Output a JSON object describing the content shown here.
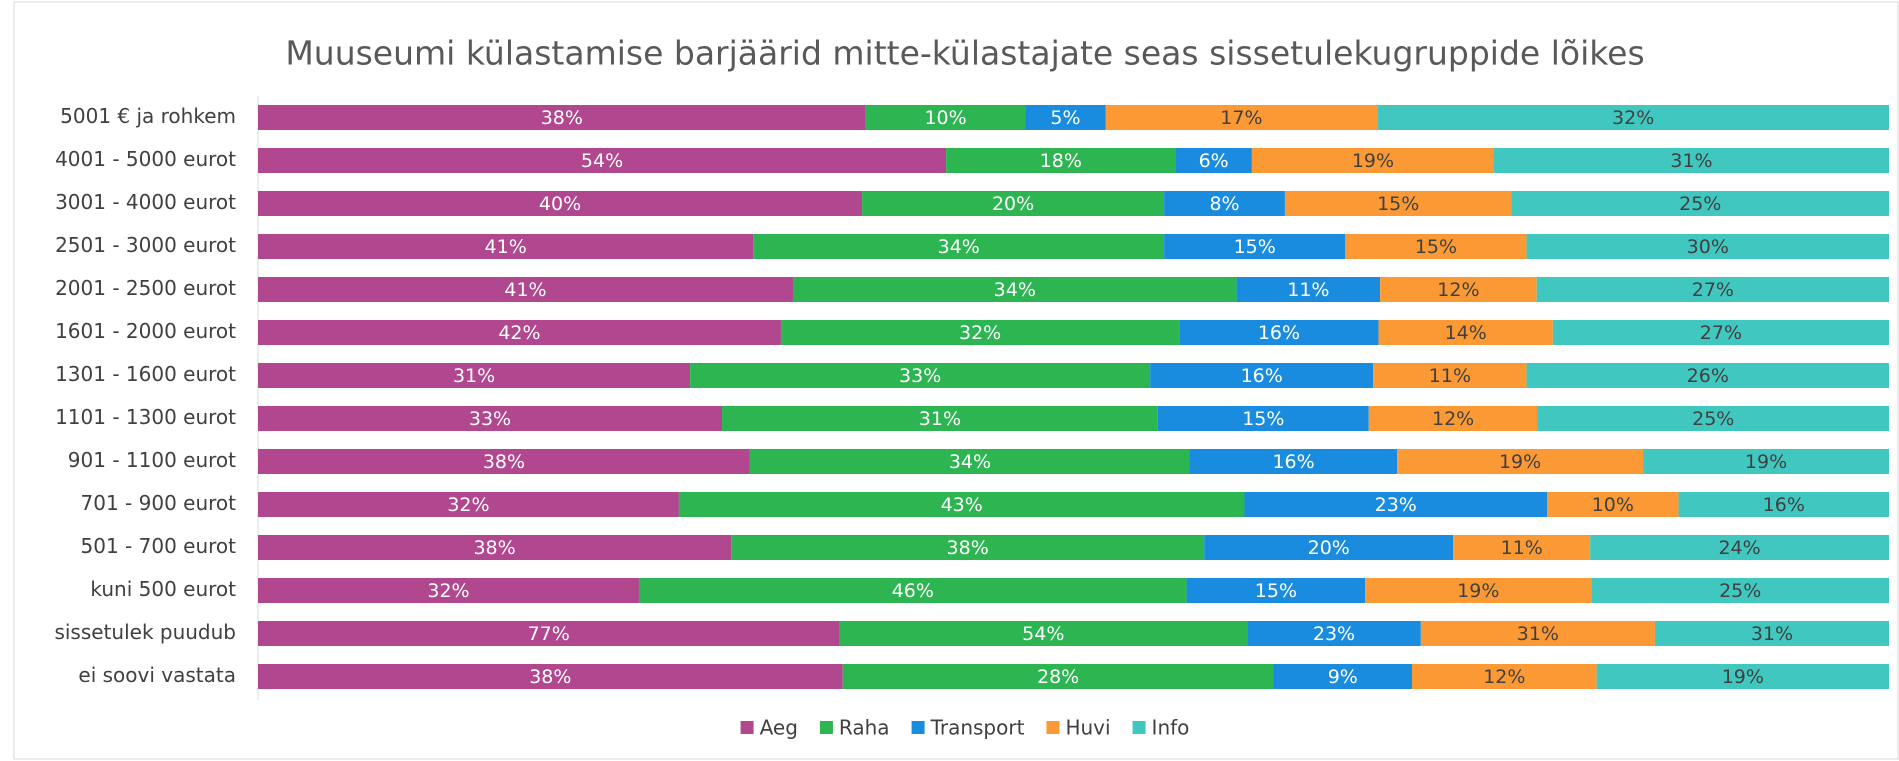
{
  "chart_data": {
    "type": "bar",
    "orientation": "horizontal",
    "stacked": "percent",
    "title": "Muuseumi külastamise barjäärid mitte-külastajate seas sissetulekugruppide lõikes",
    "categories": [
      "5001 € ja rohkem",
      "4001 - 5000 eurot",
      "3001 - 4000 eurot",
      "2501 - 3000 eurot",
      "2001 - 2500 eurot",
      "1601 - 2000 eurot",
      "1301 - 1600 eurot",
      "1101 - 1300 eurot",
      "901 - 1100 eurot",
      "701 - 900 eurot",
      "501 - 700 eurot",
      "kuni 500 eurot",
      "sissetulek puudub",
      "ei soovi vastata"
    ],
    "series": [
      {
        "name": "Aeg",
        "color": "#b0478f",
        "values": [
          38,
          54,
          40,
          41,
          41,
          42,
          31,
          33,
          38,
          32,
          38,
          32,
          77,
          38
        ],
        "value_labels": [
          "38%",
          "54%",
          "40%",
          "41%",
          "41%",
          "42%",
          "31%",
          "33%",
          "38%",
          "32%",
          "38%",
          "32%",
          "77%",
          "38%"
        ]
      },
      {
        "name": "Raha",
        "color": "#2db552",
        "values": [
          10,
          18,
          20,
          34,
          34,
          32,
          33,
          31,
          34,
          43,
          38,
          46,
          54,
          28
        ],
        "value_labels": [
          "10%",
          "18%",
          "20%",
          "34%",
          "34%",
          "32%",
          "33%",
          "31%",
          "34%",
          "43%",
          "38%",
          "46%",
          "54%",
          "28%"
        ]
      },
      {
        "name": "Transport",
        "color": "#1a8ce0",
        "values": [
          5,
          6,
          8,
          15,
          11,
          16,
          16,
          15,
          16,
          23,
          20,
          15,
          23,
          9
        ],
        "value_labels": [
          "5%",
          "6%",
          "8%",
          "15%",
          "11%",
          "16%",
          "16%",
          "15%",
          "16%",
          "23%",
          "20%",
          "15%",
          "23%",
          "9%"
        ]
      },
      {
        "name": "Huvi",
        "color": "#fb9a35",
        "values": [
          17,
          19,
          15,
          15,
          12,
          14,
          11,
          12,
          19,
          10,
          11,
          19,
          31,
          12
        ],
        "value_labels": [
          "17%",
          "19%",
          "15%",
          "15%",
          "12%",
          "14%",
          "11%",
          "12%",
          "19%",
          "10%",
          "11%",
          "19%",
          "31%",
          "12%"
        ]
      },
      {
        "name": "Info",
        "color": "#40c8c0",
        "values": [
          32,
          31,
          25,
          30,
          27,
          27,
          26,
          25,
          19,
          16,
          24,
          25,
          31,
          19
        ],
        "value_labels": [
          "32%",
          "31%",
          "25%",
          "30%",
          "27%",
          "27%",
          "26%",
          "25%",
          "19%",
          "16%",
          "24%",
          "25%",
          "31%",
          "19%"
        ]
      }
    ],
    "legend": "bottom"
  }
}
